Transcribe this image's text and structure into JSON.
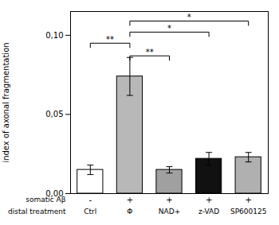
{
  "chart_data": {
    "type": "bar",
    "categories": [
      "Ctrl",
      "Φ",
      "NAD+",
      "z-VAD",
      "SP600125"
    ],
    "values": [
      0.015,
      0.074,
      0.015,
      0.022,
      0.023
    ],
    "errors": [
      0.003,
      0.012,
      0.002,
      0.004,
      0.003
    ],
    "colors": [
      "#ffffff",
      "#b8b8b8",
      "#a0a0a0",
      "#111111",
      "#b0b0b0"
    ],
    "ylabel": "index of axonal fragmentation",
    "xlabel": "distal treatment",
    "secondary_labels": {
      "label": "somatic Aβ",
      "values": [
        "-",
        "+",
        "+",
        "+",
        "+"
      ]
    },
    "ylim": [
      0,
      0.115
    ],
    "yticks": [
      {
        "value": 0,
        "label": "0,00"
      },
      {
        "value": 0.05,
        "label": "0,05"
      },
      {
        "value": 0.1,
        "label": "0,10"
      }
    ],
    "annotations": [
      {
        "x1": "Ctrl",
        "x2": "Φ",
        "y": 0.095,
        "label": "**"
      },
      {
        "x1": "Φ",
        "x2": "NAD+",
        "y": 0.087,
        "label": "**"
      },
      {
        "x1": "Φ",
        "x2": "z-VAD",
        "y": 0.102,
        "label": "*"
      },
      {
        "x1": "Φ",
        "x2": "SP600125",
        "y": 0.109,
        "label": "*"
      }
    ],
    "grid": false
  }
}
